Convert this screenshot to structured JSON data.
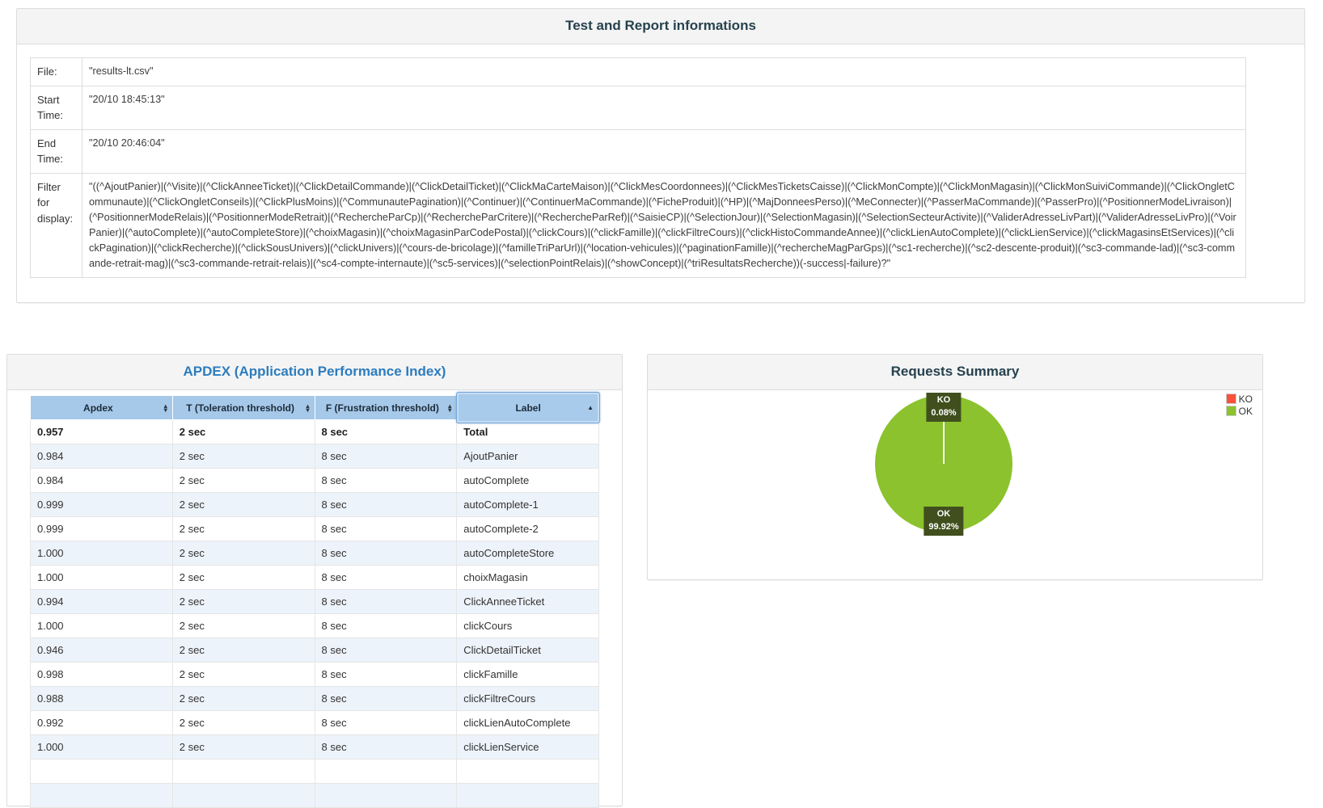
{
  "icons": {
    "sort_up": "▴",
    "sort_down": "▾",
    "sort_asc": "▲"
  },
  "colors": {
    "ok_green": "#8bc22d",
    "ko_red": "#f8523b",
    "pie_label_bg": "#414f1e",
    "apdex_title_blue": "#2d7cbe",
    "dark_title": "#26424d",
    "table_header_blue": "#a6c8e9"
  },
  "test_info": {
    "title": "Test and Report informations",
    "rows": [
      {
        "label": "File:",
        "value": "\"results-lt.csv\""
      },
      {
        "label": "Start Time:",
        "value": "\"20/10 18:45:13\""
      },
      {
        "label": "End Time:",
        "value": "\"20/10 20:46:04\""
      },
      {
        "label": "Filter for display:",
        "value": "\"((^AjoutPanier)|(^Visite)|(^ClickAnneeTicket)|(^ClickDetailCommande)|(^ClickDetailTicket)|(^ClickMaCarteMaison)|(^ClickMesCoordonnees)|(^ClickMesTicketsCaisse)|(^ClickMonCompte)|(^ClickMonMagasin)|(^ClickMonSuiviCommande)|(^ClickOngletCommunaute)|(^ClickOngletConseils)|(^ClickPlusMoins)|(^CommunautePagination)|(^Continuer)|(^ContinuerMaCommande)|(^FicheProduit)|(^HP)|(^MajDonneesPerso)|(^MeConnecter)|(^PasserMaCommande)|(^PasserPro)|(^PositionnerModeLivraison)|(^PositionnerModeRelais)|(^PositionnerModeRetrait)|(^RechercheParCp)|(^RechercheParCritere)|(^RechercheParRef)|(^SaisieCP)|(^SelectionJour)|(^SelectionMagasin)|(^SelectionSecteurActivite)|(^ValiderAdresseLivPart)|(^ValiderAdresseLivPro)|(^VoirPanier)|(^autoComplete)|(^autoCompleteStore)|(^choixMagasin)|(^choixMagasinParCodePostal)|(^clickCours)|(^clickFamille)|(^clickFiltreCours)|(^clickHistoCommandeAnnee)|(^clickLienAutoComplete)|(^clickLienService)|(^clickMagasinsEtServices)|(^clickPagination)|(^clickRecherche)|(^clickSousUnivers)|(^clickUnivers)|(^cours-de-bricolage)|(^familleTriParUrl)|(^location-vehicules)|(^paginationFamille)|(^rechercheMagParGps)|(^sc1-recherche)|(^sc2-descente-produit)|(^sc3-commande-lad)|(^sc3-commande-retrait-mag)|(^sc3-commande-retrait-relais)|(^sc4-compte-internaute)|(^sc5-services)|(^selectionPointRelais)|(^showConcept)|(^triResultatsRecherche))(-success|-failure)?\""
      }
    ]
  },
  "apdex": {
    "title": "APDEX (Application Performance Index)",
    "columns": [
      {
        "label": "Apdex",
        "sort": "both"
      },
      {
        "label": "T (Toleration threshold)",
        "sort": "both"
      },
      {
        "label": "F (Frustration threshold)",
        "sort": "both"
      },
      {
        "label": "Label",
        "sort": "asc"
      }
    ],
    "rows": [
      [
        "0.957",
        "2 sec",
        "8 sec",
        "Total"
      ],
      [
        "0.984",
        "2 sec",
        "8 sec",
        "AjoutPanier"
      ],
      [
        "0.984",
        "2 sec",
        "8 sec",
        "autoComplete"
      ],
      [
        "0.999",
        "2 sec",
        "8 sec",
        "autoComplete-1"
      ],
      [
        "0.999",
        "2 sec",
        "8 sec",
        "autoComplete-2"
      ],
      [
        "1.000",
        "2 sec",
        "8 sec",
        "autoCompleteStore"
      ],
      [
        "1.000",
        "2 sec",
        "8 sec",
        "choixMagasin"
      ],
      [
        "0.994",
        "2 sec",
        "8 sec",
        "ClickAnneeTicket"
      ],
      [
        "1.000",
        "2 sec",
        "8 sec",
        "clickCours"
      ],
      [
        "0.946",
        "2 sec",
        "8 sec",
        "ClickDetailTicket"
      ],
      [
        "0.998",
        "2 sec",
        "8 sec",
        "clickFamille"
      ],
      [
        "0.988",
        "2 sec",
        "8 sec",
        "clickFiltreCours"
      ],
      [
        "0.992",
        "2 sec",
        "8 sec",
        "clickLienAutoComplete"
      ],
      [
        "1.000",
        "2 sec",
        "8 sec",
        "clickLienService"
      ],
      [
        "",
        "",
        "",
        ""
      ],
      [
        "",
        "",
        "",
        ""
      ]
    ]
  },
  "requests_summary": {
    "title": "Requests Summary",
    "legend": [
      {
        "label": "KO",
        "color": "#f8523b"
      },
      {
        "label": "OK",
        "color": "#8bc22d"
      }
    ],
    "slices": [
      {
        "label": "KO",
        "pct": "0.08%"
      },
      {
        "label": "OK",
        "pct": "99.92%"
      }
    ]
  },
  "chart_data": {
    "type": "pie",
    "title": "Requests Summary",
    "labels": [
      "KO",
      "OK"
    ],
    "values": [
      0.08,
      99.92
    ],
    "colors": [
      "#f8523b",
      "#8bc22d"
    ],
    "legend_position": "top-right",
    "annotations": [
      "KO 0.08%",
      "OK 99.92%"
    ]
  }
}
